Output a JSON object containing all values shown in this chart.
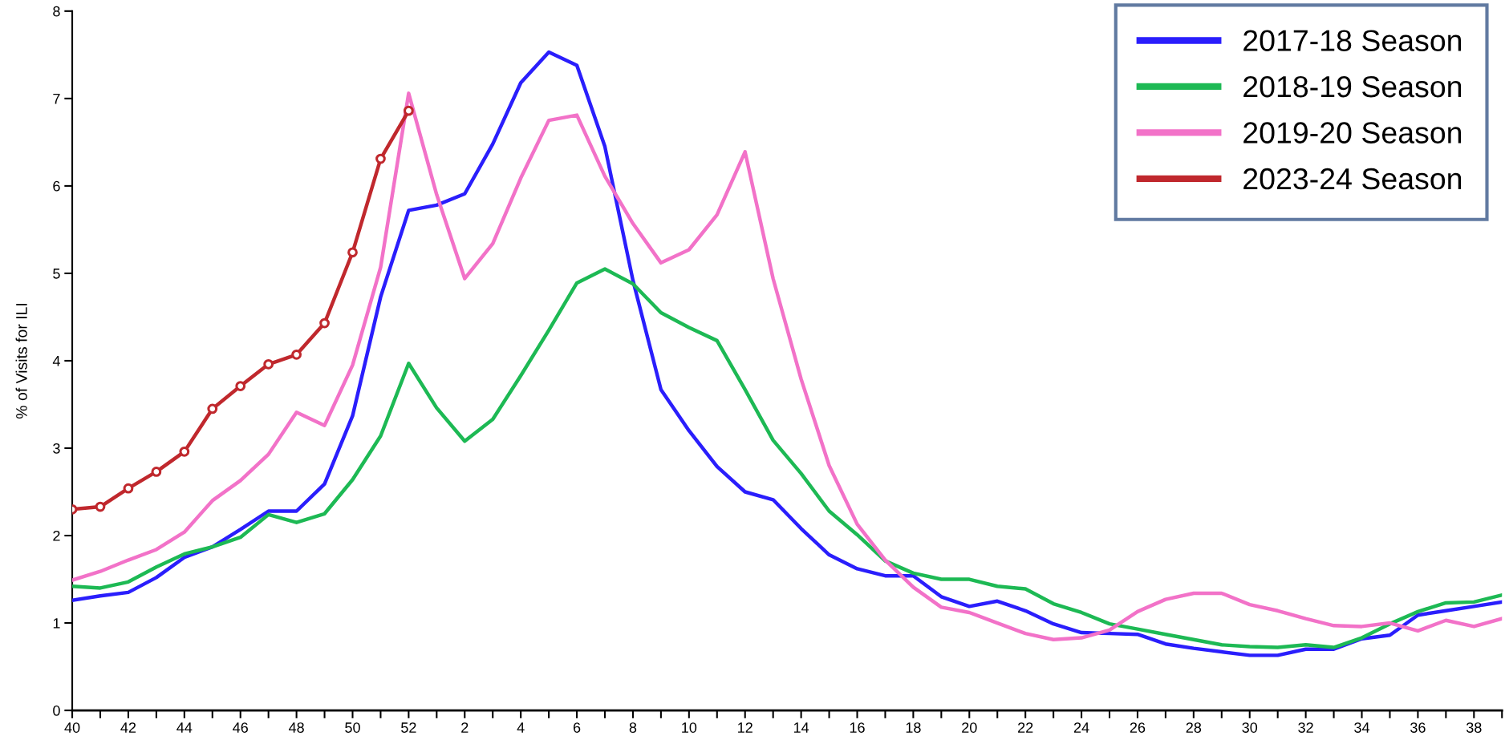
{
  "chart_data": {
    "type": "line",
    "ylabel": "% of Visits for ILI",
    "categories": [
      "40",
      null,
      "42",
      null,
      "44",
      null,
      "46",
      null,
      "48",
      null,
      "50",
      null,
      "52",
      null,
      "2",
      null,
      "4",
      null,
      "6",
      null,
      "8",
      null,
      "10",
      null,
      "12",
      null,
      "14",
      null,
      "16",
      null,
      "18",
      null,
      "20",
      null,
      "22",
      null,
      "24",
      null,
      "26",
      null,
      "28",
      null,
      "30",
      null,
      "32",
      null,
      "34",
      null,
      "36",
      null,
      "38",
      null
    ],
    "ylim": [
      0,
      8
    ],
    "yticks": [
      0,
      1,
      2,
      3,
      4,
      5,
      6,
      7,
      8
    ],
    "grid": false,
    "legend": "top right",
    "line_style": "solid",
    "series": [
      {
        "name": "2017-18 Season",
        "color": "#2a1efc",
        "marker": "none",
        "values": [
          1.26,
          1.31,
          1.35,
          1.52,
          1.75,
          1.87,
          2.07,
          2.28,
          2.28,
          2.59,
          3.37,
          4.73,
          5.72,
          5.78,
          5.91,
          6.48,
          7.18,
          7.53,
          7.38,
          6.45,
          4.92,
          3.67,
          3.2,
          2.79,
          2.5,
          2.41,
          2.08,
          1.78,
          1.62,
          1.54,
          1.54,
          1.3,
          1.19,
          1.25,
          1.14,
          0.99,
          0.89,
          0.88,
          0.87,
          0.76,
          0.71,
          0.67,
          0.63,
          0.63,
          0.7,
          0.7,
          0.82,
          0.86,
          1.09,
          1.14,
          1.19,
          1.24
        ]
      },
      {
        "name": "2018-19 Season",
        "color": "#1db954",
        "marker": "none",
        "values": [
          1.42,
          1.4,
          1.47,
          1.64,
          1.79,
          1.87,
          1.98,
          2.24,
          2.15,
          2.25,
          2.64,
          3.14,
          3.97,
          3.46,
          3.08,
          3.33,
          3.83,
          4.35,
          4.89,
          5.05,
          4.88,
          4.55,
          4.38,
          4.23,
          3.67,
          3.09,
          2.71,
          2.28,
          2.01,
          1.71,
          1.57,
          1.5,
          1.5,
          1.42,
          1.39,
          1.22,
          1.12,
          0.99,
          0.93,
          0.87,
          0.81,
          0.75,
          0.73,
          0.72,
          0.75,
          0.72,
          0.83,
          0.99,
          1.13,
          1.23,
          1.24,
          1.32
        ]
      },
      {
        "name": "2019-20 Season",
        "color": "#f272c8",
        "marker": "none",
        "values": [
          1.49,
          1.59,
          1.72,
          1.84,
          2.04,
          2.4,
          2.63,
          2.93,
          3.41,
          3.26,
          3.95,
          5.07,
          7.06,
          5.9,
          4.94,
          5.34,
          6.09,
          6.75,
          6.81,
          6.11,
          5.57,
          5.12,
          5.27,
          5.67,
          6.39,
          4.94,
          3.79,
          2.8,
          2.13,
          1.72,
          1.41,
          1.18,
          1.12,
          1.0,
          0.88,
          0.81,
          0.83,
          0.92,
          1.13,
          1.27,
          1.34,
          1.34,
          1.21,
          1.14,
          1.05,
          0.97,
          0.96,
          1.0,
          0.91,
          1.03,
          0.96,
          1.05
        ]
      },
      {
        "name": "2023-24 Season",
        "color": "#c0282d",
        "marker": "circle",
        "values": [
          2.3,
          2.33,
          2.54,
          2.73,
          2.96,
          3.45,
          3.71,
          3.96,
          4.07,
          4.43,
          5.24,
          6.31,
          6.86,
          null,
          null,
          null,
          null,
          null,
          null,
          null,
          null,
          null,
          null,
          null,
          null,
          null,
          null,
          null,
          null,
          null,
          null,
          null,
          null,
          null,
          null,
          null,
          null,
          null,
          null,
          null,
          null,
          null,
          null,
          null,
          null,
          null,
          null,
          null,
          null,
          null,
          null,
          null
        ]
      }
    ]
  }
}
